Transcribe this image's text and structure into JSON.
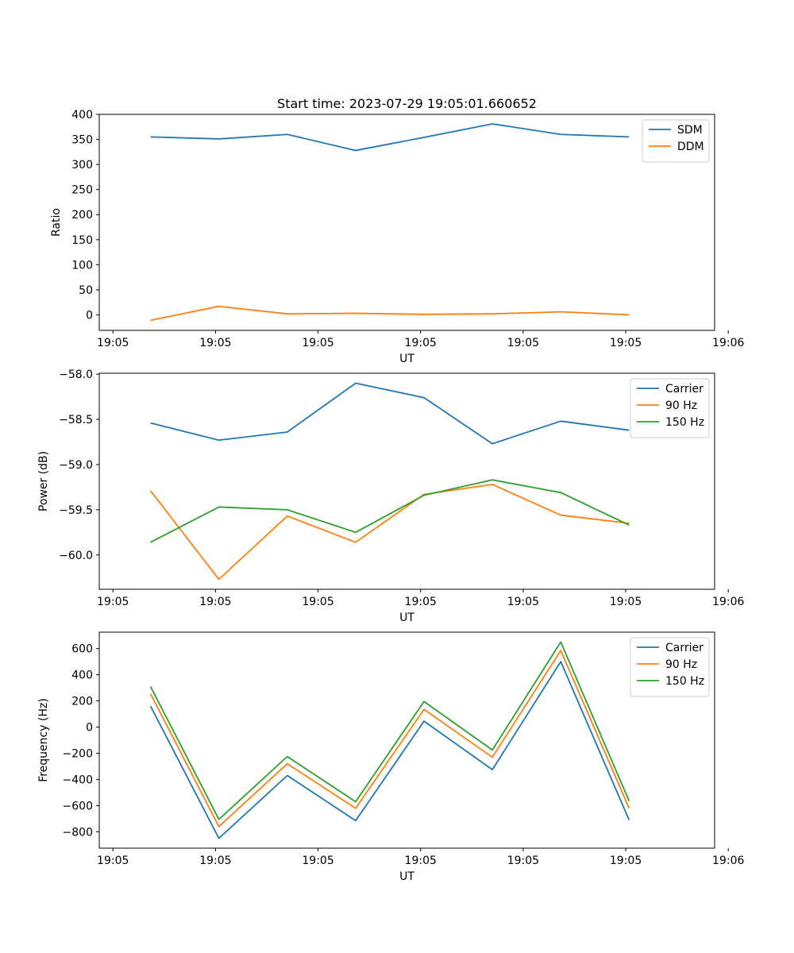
{
  "figure": {
    "title": "Start time: 2023-07-29 19:05:01.660652"
  },
  "colors": {
    "blue": "#1f77b4",
    "orange": "#ff7f0e",
    "green": "#2ca02c"
  },
  "chart_data": [
    {
      "type": "line",
      "title": "Start time: 2023-07-29 19:05:01.660652",
      "xlabel": "UT",
      "ylabel": "Ratio",
      "x": [
        1,
        2,
        3,
        4,
        5,
        6,
        7,
        8
      ],
      "xlim": [
        0.25,
        9.25
      ],
      "ylim": [
        -31,
        400
      ],
      "yticks": [
        0,
        50,
        100,
        150,
        200,
        250,
        300,
        350,
        400
      ],
      "xticks": [
        0.45,
        1.95,
        3.45,
        4.95,
        6.45,
        7.95,
        9.45
      ],
      "xtick_labels": [
        "19:05",
        "19:05",
        "19:05",
        "19:05",
        "19:05",
        "19:05",
        "19:06"
      ],
      "legend": "top-right",
      "series": [
        {
          "name": "SDM",
          "color": "blue",
          "values": [
            355,
            351,
            360,
            328,
            354,
            381,
            360,
            355
          ]
        },
        {
          "name": "DDM",
          "color": "orange",
          "values": [
            -11,
            17,
            2,
            3,
            1,
            2,
            6,
            0
          ]
        }
      ]
    },
    {
      "type": "line",
      "xlabel": "UT",
      "ylabel": "Power (dB)",
      "x": [
        1,
        2,
        3,
        4,
        5,
        6,
        7,
        8
      ],
      "xlim": [
        0.25,
        9.25
      ],
      "ylim": [
        -60.38,
        -57.99
      ],
      "yticks": [
        -60.0,
        -59.5,
        -59.0,
        -58.5,
        -58.0
      ],
      "ytick_labels": [
        "−60.0",
        "−59.5",
        "−59.0",
        "−58.5",
        "−58.0"
      ],
      "xticks": [
        0.45,
        1.95,
        3.45,
        4.95,
        6.45,
        7.95,
        9.45
      ],
      "xtick_labels": [
        "19:05",
        "19:05",
        "19:05",
        "19:05",
        "19:05",
        "19:05",
        "19:06"
      ],
      "legend": "top-right",
      "series": [
        {
          "name": "Carrier",
          "color": "blue",
          "values": [
            -58.54,
            -58.73,
            -58.64,
            -58.1,
            -58.26,
            -58.77,
            -58.52,
            -58.62
          ]
        },
        {
          "name": "90 Hz",
          "color": "orange",
          "values": [
            -59.29,
            -60.27,
            -59.57,
            -59.86,
            -59.33,
            -59.22,
            -59.56,
            -59.65
          ]
        },
        {
          "name": "150 Hz",
          "color": "green",
          "values": [
            -59.86,
            -59.47,
            -59.5,
            -59.75,
            -59.34,
            -59.17,
            -59.31,
            -59.67
          ]
        }
      ]
    },
    {
      "type": "line",
      "xlabel": "UT",
      "ylabel": "Frequency (Hz)",
      "x": [
        1,
        2,
        3,
        4,
        5,
        6,
        7,
        8
      ],
      "xlim": [
        0.25,
        9.25
      ],
      "ylim": [
        -925,
        725
      ],
      "yticks": [
        -800,
        -600,
        -400,
        -200,
        0,
        200,
        400,
        600
      ],
      "ytick_labels": [
        "−800",
        "−600",
        "−400",
        "−200",
        "0",
        "200",
        "400",
        "600"
      ],
      "xticks": [
        0.45,
        1.95,
        3.45,
        4.95,
        6.45,
        7.95,
        9.45
      ],
      "xtick_labels": [
        "19:05",
        "19:05",
        "19:05",
        "19:05",
        "19:05",
        "19:05",
        "19:06"
      ],
      "legend": "top-right",
      "series": [
        {
          "name": "Carrier",
          "color": "blue",
          "values": [
            160,
            -850,
            -370,
            -715,
            45,
            -325,
            500,
            -710
          ]
        },
        {
          "name": "90 Hz",
          "color": "orange",
          "values": [
            255,
            -760,
            -280,
            -620,
            135,
            -230,
            585,
            -620
          ]
        },
        {
          "name": "150 Hz",
          "color": "green",
          "values": [
            310,
            -705,
            -225,
            -570,
            195,
            -175,
            650,
            -565
          ]
        }
      ]
    }
  ]
}
